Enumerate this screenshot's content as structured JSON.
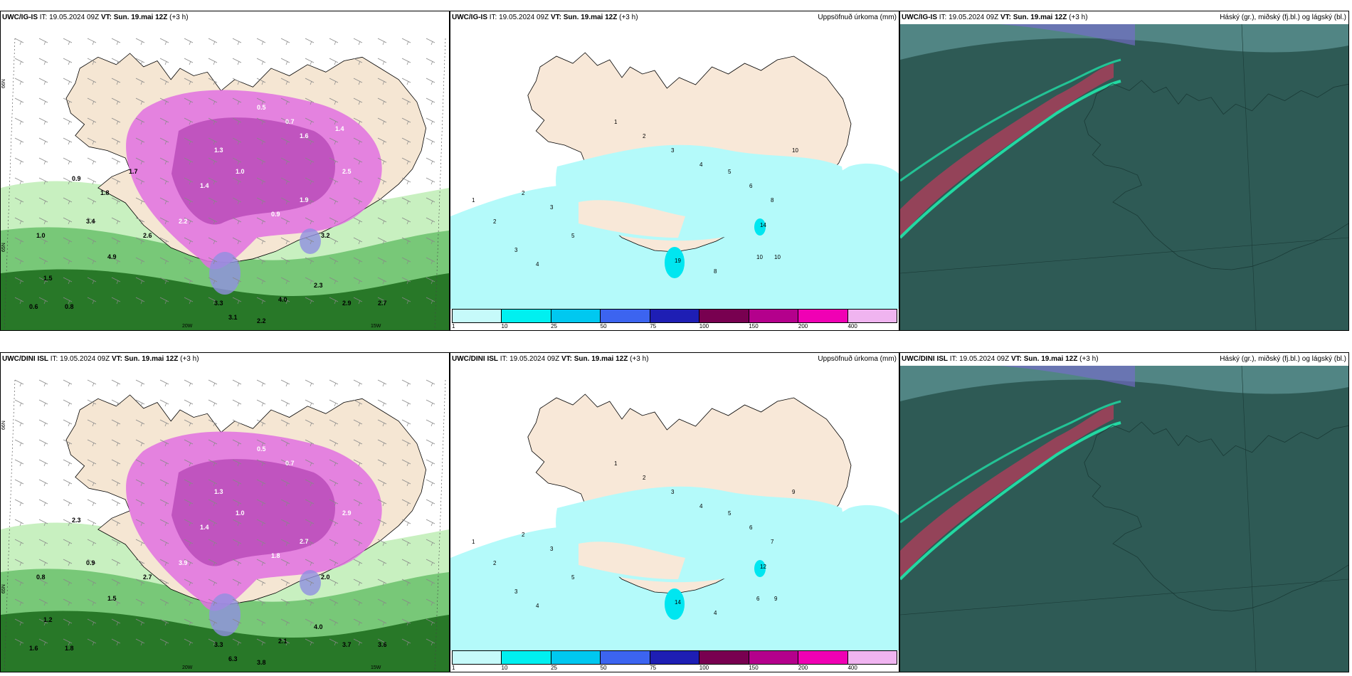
{
  "panels": [
    {
      "id": "row1-precip",
      "title_model": "UWC/IG-IS",
      "title_it": "IT: 19.05.2024 09Z",
      "title_vt": "VT: Sun. 19.mai 12Z",
      "title_step": "(+3 h)",
      "right_label": "",
      "type": "precip-rate"
    },
    {
      "id": "row1-accum",
      "title_model": "UWC/IG-IS",
      "title_it": "IT: 19.05.2024 09Z",
      "title_vt": "VT: Sun. 19.mai 12Z",
      "title_step": "(+3 h)",
      "right_label": "Uppsöfnuð úrkoma (mm)",
      "type": "accum"
    },
    {
      "id": "row1-cloud",
      "title_model": "UWC/IG-IS",
      "title_it": "IT: 19.05.2024 09Z",
      "title_vt": "VT: Sun. 19.mai 12Z",
      "title_step": "(+3 h)",
      "right_label": "Háský (gr.), miðský (fj.bl.) og lágský (bl.)",
      "type": "cloud"
    },
    {
      "id": "row2-precip",
      "title_model": "UWC/DINI ISL",
      "title_it": "IT: 19.05.2024 09Z",
      "title_vt": "VT: Sun. 19.mai 12Z",
      "title_step": "(+3 h)",
      "right_label": "",
      "type": "precip-rate"
    },
    {
      "id": "row2-accum",
      "title_model": "UWC/DINI ISL",
      "title_it": "IT: 19.05.2024 09Z",
      "title_vt": "VT: Sun. 19.mai 12Z",
      "title_step": "(+3 h)",
      "right_label": "Uppsöfnuð úrkoma (mm)",
      "type": "accum"
    },
    {
      "id": "row2-cloud",
      "title_model": "UWC/DINI ISL",
      "title_it": "IT: 19.05.2024 09Z",
      "title_vt": "VT: Sun. 19.mai 12Z",
      "title_step": "(+3 h)",
      "right_label": "Háský (gr.), miðský (fj.bl.) og lágský (bl.)",
      "type": "cloud"
    }
  ],
  "legend": {
    "colors": [
      "#c6fafa",
      "#00f0f0",
      "#00c8f0",
      "#3c64f0",
      "#1e1eb4",
      "#780050",
      "#b4008c",
      "#f000b4",
      "#f0b4f0"
    ],
    "ticks": [
      "1",
      "10",
      "25",
      "50",
      "75",
      "100",
      "150",
      "200",
      "400"
    ]
  },
  "precip_labels": {
    "row1": [
      "0.5",
      "0.7",
      "1.3",
      "1.4",
      "1.0",
      "0.9",
      "1.9",
      "3.2",
      "2.5",
      "2.2",
      "2.3",
      "2.9",
      "2.7",
      "3.3",
      "4.0",
      "3.1",
      "2.2",
      "2.6",
      "4.9",
      "3.4",
      "1.5",
      "0.6",
      "0.8",
      "1.0",
      "0.9",
      "1.8",
      "1.7",
      "1.6",
      "1.4"
    ],
    "row2": [
      "0.5",
      "0.7",
      "1.3",
      "1.4",
      "1.0",
      "1.8",
      "2.7",
      "2.0",
      "2.9",
      "3.9",
      "4.0",
      "3.7",
      "3.6",
      "3.3",
      "2.1",
      "6.3",
      "3.8",
      "2.7",
      "1.5",
      "0.9",
      "1.2",
      "1.6",
      "1.8",
      "0.8",
      "2.3"
    ]
  },
  "accum_labels": {
    "row1": [
      "1",
      "2",
      "3",
      "4",
      "5",
      "6",
      "8",
      "10",
      "14",
      "19",
      "2",
      "3",
      "5",
      "1",
      "2",
      "3",
      "4",
      "10",
      "10",
      "8"
    ],
    "row2": [
      "1",
      "2",
      "3",
      "4",
      "5",
      "6",
      "7",
      "9",
      "12",
      "14",
      "2",
      "3",
      "5",
      "1",
      "2",
      "3",
      "4",
      "6",
      "9",
      "4"
    ]
  },
  "precip_axis": {
    "lat": "66N",
    "lat2": "65N",
    "lon1": "20W",
    "lon2": "15W"
  }
}
